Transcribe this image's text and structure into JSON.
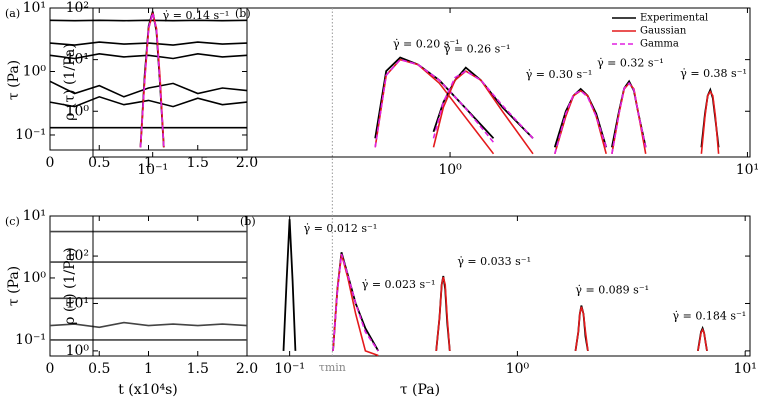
{
  "chart_data": [
    {
      "type": "line",
      "panel_label": "(a)",
      "y_label": "τ (Pa)",
      "log_y": true,
      "xlim": [
        0,
        2
      ],
      "ylim": [
        0.058,
        10
      ],
      "xticks": [
        0,
        0.5,
        1,
        1.5,
        {
          "value": 2,
          "label": "2.0"
        }
      ],
      "yticks": [
        {
          "value": 0.1,
          "label": "10⁻¹"
        },
        {
          "value": 1,
          "label": "10⁰"
        },
        {
          "value": 10,
          "label": "10¹"
        }
      ],
      "x": [
        0,
        0.25,
        0.5,
        0.75,
        1,
        1.25,
        1.5,
        1.75,
        2
      ],
      "series": [
        {
          "color": "#000000",
          "values": [
            6.4,
            6.3,
            6.4,
            6.3,
            6.4,
            6.3,
            6.4,
            6.3,
            6.4
          ]
        },
        {
          "color": "#000000",
          "values": [
            2.8,
            2.6,
            2.9,
            2.7,
            2.8,
            2.6,
            2.9,
            2.7,
            2.8
          ]
        },
        {
          "color": "#000000",
          "values": [
            1.8,
            1.6,
            1.9,
            1.7,
            1.8,
            1.6,
            1.9,
            1.7,
            1.8
          ]
        },
        {
          "color": "#000000",
          "values": [
            0.7,
            0.45,
            0.6,
            0.4,
            0.55,
            0.65,
            0.45,
            0.55,
            0.5
          ]
        },
        {
          "color": "#000000",
          "values": [
            0.33,
            0.28,
            0.4,
            0.3,
            0.35,
            0.28,
            0.38,
            0.3,
            0.33
          ]
        },
        {
          "color": "#000000",
          "values": [
            0.13,
            0.13,
            0.13,
            0.13,
            0.13,
            0.13,
            0.13,
            0.13,
            0.13
          ]
        }
      ]
    },
    {
      "type": "density",
      "panel_label": "(b)",
      "y_label": "ρ (τ) (1/Pa)",
      "log_x": true,
      "log_y": true,
      "xlim": [
        0.063,
        10.2
      ],
      "ylim": [
        0.13,
        100
      ],
      "xticks": [
        {
          "value": 0.1,
          "label": "10⁻¹"
        },
        {
          "value": 1,
          "label": "10⁰"
        },
        {
          "value": 10,
          "label": "10¹"
        }
      ],
      "yticks": [
        {
          "value": 1,
          "label": "10⁰"
        },
        {
          "value": 10,
          "label": "10¹"
        },
        {
          "value": 100,
          "label": "10²"
        }
      ],
      "styles": {
        "experimental": "#000000",
        "gaussian": "#e41a1c",
        "gamma": "#e020e0"
      },
      "legend": [
        "Experimental",
        "Gaussian",
        "Gamma"
      ],
      "peaks": [
        {
          "label": "γ̇ = 0.14 s⁻¹",
          "x": [
            0.091,
            0.094,
            0.097,
            0.1,
            0.103,
            0.106,
            0.109
          ],
          "experimental": [
            0.2,
            5,
            45,
            85,
            35,
            3,
            0.2
          ],
          "gaussian": [
            0.2,
            4,
            40,
            80,
            40,
            4,
            0.2
          ],
          "gamma": [
            0.2,
            4,
            42,
            80,
            38,
            3,
            0.2
          ]
        },
        {
          "label": "γ̇ = 0.20 s⁻¹",
          "x": [
            0.56,
            0.61,
            0.68,
            0.78,
            0.92,
            1.12,
            1.4
          ],
          "experimental": [
            0.3,
            6,
            11,
            8,
            4,
            1.2,
            0.3
          ],
          "gaussian": [
            0.2,
            5,
            10,
            8,
            3.5,
            0.8,
            0.15
          ],
          "gamma": [
            0.2,
            5,
            10,
            8,
            4,
            1.2,
            0.25
          ]
        },
        {
          "label": "γ̇ = 0.26 s⁻¹",
          "x": [
            0.88,
            0.95,
            1.04,
            1.13,
            1.27,
            1.5,
            1.9
          ],
          "experimental": [
            0.4,
            1.5,
            4,
            7,
            4,
            1.2,
            0.3
          ],
          "gaussian": [
            0.2,
            1.2,
            4,
            6,
            4,
            1,
            0.15
          ],
          "gamma": [
            0.3,
            1.5,
            4.5,
            6,
            4,
            1.3,
            0.3
          ]
        },
        {
          "label": "γ̇ = 0.30 s⁻¹",
          "x": [
            2.25,
            2.45,
            2.6,
            2.75,
            2.9,
            3.1,
            3.35
          ],
          "experimental": [
            0.2,
            1,
            2,
            2.7,
            2,
            0.9,
            0.2
          ],
          "gaussian": [
            0.15,
            0.8,
            2,
            2.5,
            2,
            0.8,
            0.15
          ],
          "gamma": [
            0.15,
            0.9,
            2.1,
            2.5,
            1.9,
            0.8,
            0.2
          ]
        },
        {
          "label": "γ̇ = 0.32 s⁻¹",
          "x": [
            3.5,
            3.7,
            3.85,
            4,
            4.15,
            4.3,
            4.55
          ],
          "experimental": [
            0.2,
            1,
            2.8,
            3.8,
            2.5,
            0.9,
            0.2
          ],
          "gaussian": [
            0.15,
            0.9,
            2.7,
            3.5,
            2.7,
            0.9,
            0.15
          ],
          "gamma": [
            0.15,
            0.9,
            2.8,
            3.5,
            2.6,
            0.9,
            0.2
          ]
        },
        {
          "label": "γ̇ = 0.38 s⁻¹",
          "x": [
            7,
            7.2,
            7.35,
            7.5,
            7.65,
            7.8,
            8
          ],
          "experimental": [
            0.2,
            0.9,
            2,
            2.6,
            1.8,
            0.7,
            0.2
          ],
          "gaussian": [
            0.15,
            0.8,
            2,
            2.4,
            2,
            0.8,
            0.15
          ]
        }
      ]
    },
    {
      "type": "line",
      "panel_label": "(c)",
      "y_label": "τ (Pa)",
      "x_label": "t (x10⁴s)",
      "log_y": true,
      "xlim": [
        0,
        2
      ],
      "ylim": [
        0.055,
        10
      ],
      "xticks": [
        0,
        0.5,
        1,
        1.5,
        {
          "value": 2,
          "label": "2.0"
        }
      ],
      "yticks": [
        {
          "value": 0.1,
          "label": "10⁻¹"
        },
        {
          "value": 1,
          "label": "10⁰"
        },
        {
          "value": 10,
          "label": "10¹"
        }
      ],
      "x": [
        0,
        0.25,
        0.5,
        0.75,
        1,
        1.25,
        1.5,
        1.75,
        2
      ],
      "series": [
        {
          "color": "#444444",
          "values": [
            5.6,
            5.6,
            5.6,
            5.6,
            5.6,
            5.6,
            5.6,
            5.6,
            5.6
          ]
        },
        {
          "color": "#444444",
          "values": [
            1.8,
            1.8,
            1.8,
            1.8,
            1.8,
            1.8,
            1.8,
            1.8,
            1.8
          ]
        },
        {
          "color": "#444444",
          "values": [
            0.47,
            0.47,
            0.47,
            0.47,
            0.47,
            0.47,
            0.47,
            0.47,
            0.47
          ]
        },
        {
          "color": "#444444",
          "values": [
            0.17,
            0.18,
            0.16,
            0.19,
            0.17,
            0.18,
            0.17,
            0.18,
            0.17
          ]
        },
        {
          "color": "#444444",
          "values": [
            0.1,
            0.1,
            0.1,
            0.1,
            0.1,
            0.1,
            0.1,
            0.1,
            0.1
          ]
        }
      ]
    },
    {
      "type": "density",
      "panel_label": "(b)",
      "y_label": "ρ (τ) (1/Pa)",
      "x_label": "τ (Pa)",
      "log_x": true,
      "log_y": true,
      "xlim": [
        0.0137,
        10.5
      ],
      "ylim": [
        0.78,
        700
      ],
      "xticks": [
        {
          "value": 0.1,
          "label": "10⁻¹"
        },
        {
          "value": 1,
          "label": "10⁰"
        },
        {
          "value": 10,
          "label": "10¹"
        }
      ],
      "yticks": [
        {
          "value": 1,
          "label": "10⁰"
        },
        {
          "value": 10,
          "label": "10¹"
        },
        {
          "value": 100,
          "label": "10²"
        }
      ],
      "styles": {
        "experimental": "#000000",
        "gaussian": "#e41a1c",
        "gamma": "#e020e0"
      },
      "marker": {
        "value": 0.154,
        "label": "τmin"
      },
      "peaks": [
        {
          "label": "γ̇ = 0.012 s⁻¹",
          "x": [
            0.094,
            0.097,
            0.1,
            0.103,
            0.106
          ],
          "experimental": [
            1,
            30,
            600,
            30,
            1
          ]
        },
        {
          "label": "γ̇ = 0.023 s⁻¹",
          "x": [
            0.155,
            0.162,
            0.169,
            0.18,
            0.195,
            0.215,
            0.245
          ],
          "experimental": [
            1,
            20,
            120,
            40,
            10,
            3,
            1
          ],
          "gaussian": [
            1,
            20,
            110,
            35,
            6,
            1,
            0.8
          ],
          "gamma": [
            1,
            18,
            110,
            40,
            10,
            2.5,
            1
          ]
        },
        {
          "label": "γ̇ = 0.033 s⁻¹",
          "x": [
            0.44,
            0.455,
            0.465,
            0.473,
            0.482,
            0.492,
            0.505
          ],
          "experimental": [
            1,
            5,
            25,
            38,
            20,
            4,
            1
          ],
          "gaussian": [
            1,
            5,
            25,
            36,
            25,
            5,
            1
          ]
        },
        {
          "label": "γ̇ = 0.089 s⁻¹",
          "x": [
            1.8,
            1.85,
            1.88,
            1.91,
            1.95,
            1.99,
            2.04
          ],
          "experimental": [
            1,
            2.5,
            6,
            9,
            6,
            2,
            1
          ],
          "gaussian": [
            1,
            2.5,
            6,
            8.5,
            6,
            2.5,
            1
          ]
        },
        {
          "label": "γ̇ = 0.184 s⁻¹",
          "x": [
            6.2,
            6.3,
            6.4,
            6.5,
            6.6,
            6.7,
            6.8
          ],
          "experimental": [
            1,
            1.6,
            2.5,
            3,
            2.4,
            1.5,
            1
          ],
          "gaussian": [
            1,
            1.5,
            2.4,
            2.8,
            2.4,
            1.5,
            1
          ]
        }
      ]
    }
  ]
}
